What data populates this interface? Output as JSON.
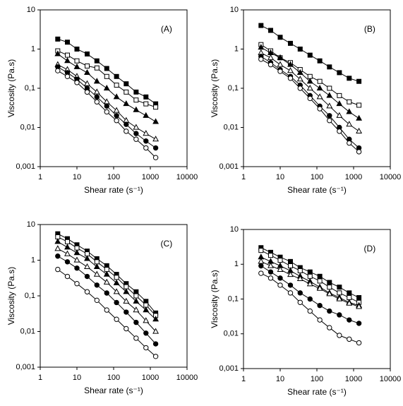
{
  "chart_data": [
    {
      "type": "line",
      "annotation": "(A)",
      "xlabel": "Shear rate (s⁻¹)",
      "ylabel": "Viscosity (Pa.s)",
      "xscale": "log",
      "yscale": "log",
      "grid": false,
      "xlim": [
        1,
        10000
      ],
      "xticks": [
        1,
        10,
        100,
        1000,
        10000
      ],
      "ylim": [
        0.001,
        10
      ],
      "yticks": [
        {
          "value": 0.001,
          "label": "0,001"
        },
        {
          "value": 0.01,
          "label": "0,01"
        },
        {
          "value": 0.1,
          "label": "0,1"
        },
        1,
        10
      ],
      "x": [
        3,
        5.5,
        10,
        19,
        35,
        65,
        120,
        220,
        410,
        760,
        1400
      ],
      "series": [
        {
          "marker": "square",
          "filled": true,
          "color": "#000000",
          "values": [
            1.8,
            1.5,
            1.0,
            0.75,
            0.5,
            0.32,
            0.2,
            0.13,
            0.08,
            0.06,
            0.04
          ]
        },
        {
          "marker": "square",
          "filled": false,
          "color": "#000000",
          "values": [
            0.9,
            0.7,
            0.5,
            0.37,
            0.33,
            0.2,
            0.12,
            0.08,
            0.05,
            0.04,
            0.033
          ]
        },
        {
          "marker": "triangle",
          "filled": true,
          "color": "#000000",
          "values": [
            0.75,
            0.5,
            0.35,
            0.25,
            0.15,
            0.1,
            0.06,
            0.04,
            0.028,
            0.02,
            0.014
          ]
        },
        {
          "marker": "triangle",
          "filled": false,
          "color": "#000000",
          "values": [
            0.4,
            0.3,
            0.2,
            0.13,
            0.08,
            0.045,
            0.027,
            0.015,
            0.01,
            0.007,
            0.005
          ]
        },
        {
          "marker": "circle",
          "filled": true,
          "color": "#000000",
          "values": [
            0.35,
            0.25,
            0.17,
            0.1,
            0.06,
            0.035,
            0.02,
            0.012,
            0.007,
            0.0045,
            0.003
          ]
        },
        {
          "marker": "circle",
          "filled": false,
          "color": "#000000",
          "values": [
            0.28,
            0.2,
            0.14,
            0.08,
            0.045,
            0.025,
            0.015,
            0.008,
            0.005,
            0.003,
            0.0017
          ]
        }
      ]
    },
    {
      "type": "line",
      "annotation": "(B)",
      "xlabel": "Shear rate (s⁻¹)",
      "ylabel": "Viscosity (Pa.s)",
      "xscale": "log",
      "yscale": "log",
      "grid": false,
      "xlim": [
        1,
        10000
      ],
      "xticks": [
        1,
        10,
        100,
        1000,
        10000
      ],
      "ylim": [
        0.001,
        10
      ],
      "yticks": [
        {
          "value": 0.001,
          "label": "0,001"
        },
        {
          "value": 0.01,
          "label": "0,01"
        },
        {
          "value": 0.1,
          "label": "0,1"
        },
        1,
        10
      ],
      "x": [
        3,
        5.5,
        10,
        19,
        35,
        65,
        120,
        220,
        410,
        760,
        1400
      ],
      "series": [
        {
          "marker": "square",
          "filled": true,
          "color": "#000000",
          "values": [
            4,
            3,
            2,
            1.4,
            1,
            0.7,
            0.5,
            0.35,
            0.25,
            0.18,
            0.15
          ]
        },
        {
          "marker": "square",
          "filled": false,
          "color": "#000000",
          "values": [
            1.3,
            0.9,
            0.6,
            0.45,
            0.3,
            0.2,
            0.15,
            0.1,
            0.065,
            0.045,
            0.037
          ]
        },
        {
          "marker": "triangle",
          "filled": true,
          "color": "#000000",
          "values": [
            1.1,
            0.8,
            0.6,
            0.4,
            0.25,
            0.15,
            0.1,
            0.065,
            0.04,
            0.025,
            0.017
          ]
        },
        {
          "marker": "triangle",
          "filled": false,
          "color": "#000000",
          "values": [
            0.8,
            0.6,
            0.4,
            0.28,
            0.17,
            0.1,
            0.06,
            0.035,
            0.02,
            0.012,
            0.008
          ]
        },
        {
          "marker": "circle",
          "filled": true,
          "color": "#000000",
          "values": [
            0.65,
            0.45,
            0.3,
            0.2,
            0.12,
            0.065,
            0.035,
            0.02,
            0.01,
            0.005,
            0.003
          ]
        },
        {
          "marker": "circle",
          "filled": false,
          "color": "#000000",
          "values": [
            0.55,
            0.4,
            0.27,
            0.18,
            0.1,
            0.055,
            0.03,
            0.015,
            0.008,
            0.004,
            0.0024
          ]
        }
      ]
    },
    {
      "type": "line",
      "annotation": "(C)",
      "xlabel": "Shear rate (s⁻¹)",
      "ylabel": "Viscosity (Pa.s)",
      "xscale": "log",
      "yscale": "log",
      "grid": false,
      "xlim": [
        1,
        10000
      ],
      "xticks": [
        1,
        10,
        100,
        1000,
        10000
      ],
      "ylim": [
        0.001,
        10
      ],
      "yticks": [
        {
          "value": 0.001,
          "label": "0,001"
        },
        {
          "value": 0.01,
          "label": "0,01"
        },
        {
          "value": 0.1,
          "label": "0,1"
        },
        1,
        10
      ],
      "x": [
        3,
        5.5,
        10,
        19,
        35,
        65,
        120,
        220,
        410,
        760,
        1400
      ],
      "series": [
        {
          "marker": "square",
          "filled": true,
          "color": "#000000",
          "values": [
            5.5,
            4,
            2.7,
            1.8,
            1.1,
            0.7,
            0.4,
            0.22,
            0.13,
            0.07,
            0.033
          ]
        },
        {
          "marker": "square",
          "filled": false,
          "color": "#000000",
          "values": [
            4.5,
            3.3,
            2.2,
            1.5,
            0.9,
            0.55,
            0.33,
            0.18,
            0.1,
            0.055,
            0.028
          ]
        },
        {
          "marker": "triangle",
          "filled": true,
          "color": "#000000",
          "values": [
            3.3,
            2.3,
            1.6,
            1.1,
            0.65,
            0.4,
            0.23,
            0.13,
            0.07,
            0.04,
            0.022
          ]
        },
        {
          "marker": "triangle",
          "filled": false,
          "color": "#000000",
          "values": [
            2.1,
            1.5,
            1.0,
            0.65,
            0.4,
            0.24,
            0.13,
            0.07,
            0.04,
            0.02,
            0.01
          ]
        },
        {
          "marker": "circle",
          "filled": true,
          "color": "#000000",
          "values": [
            1.3,
            0.9,
            0.6,
            0.35,
            0.2,
            0.12,
            0.065,
            0.035,
            0.018,
            0.009,
            0.0045
          ]
        },
        {
          "marker": "circle",
          "filled": false,
          "color": "#000000",
          "values": [
            0.55,
            0.35,
            0.22,
            0.13,
            0.075,
            0.04,
            0.022,
            0.012,
            0.0065,
            0.0035,
            0.002
          ]
        }
      ]
    },
    {
      "type": "line",
      "annotation": "(D)",
      "xlabel": "Shear rate (s⁻¹)",
      "ylabel": "Viscosity (Pa.s)",
      "xscale": "log",
      "yscale": "log",
      "grid": false,
      "xlim": [
        1,
        10000
      ],
      "xticks": [
        1,
        10,
        100,
        1000,
        10000
      ],
      "ylim": [
        0.001,
        10
      ],
      "yticks": [
        {
          "value": 0.001,
          "label": "0,001"
        },
        {
          "value": 0.01,
          "label": "0,01"
        },
        {
          "value": 0.1,
          "label": "0,1"
        },
        1,
        10
      ],
      "x": [
        3,
        5.5,
        10,
        19,
        35,
        65,
        120,
        220,
        410,
        760,
        1400
      ],
      "series": [
        {
          "marker": "square",
          "filled": true,
          "color": "#000000",
          "values": [
            3,
            2.2,
            1.6,
            1.2,
            0.8,
            0.6,
            0.45,
            0.3,
            0.22,
            0.15,
            0.11
          ]
        },
        {
          "marker": "square",
          "filled": false,
          "color": "#000000",
          "values": [
            2.5,
            1.8,
            1.3,
            0.9,
            0.65,
            0.45,
            0.33,
            0.22,
            0.15,
            0.11,
            0.08
          ]
        },
        {
          "marker": "triangle",
          "filled": true,
          "color": "#000000",
          "values": [
            1.6,
            1.2,
            0.9,
            0.65,
            0.45,
            0.32,
            0.22,
            0.15,
            0.11,
            0.08,
            0.065
          ]
        },
        {
          "marker": "triangle",
          "filled": false,
          "color": "#000000",
          "values": [
            1.2,
            0.9,
            0.7,
            0.5,
            0.38,
            0.27,
            0.2,
            0.14,
            0.1,
            0.075,
            0.06
          ]
        },
        {
          "marker": "circle",
          "filled": true,
          "color": "#000000",
          "values": [
            0.9,
            0.6,
            0.4,
            0.25,
            0.15,
            0.1,
            0.065,
            0.045,
            0.035,
            0.025,
            0.02
          ]
        },
        {
          "marker": "circle",
          "filled": false,
          "color": "#000000",
          "values": [
            0.55,
            0.4,
            0.25,
            0.15,
            0.08,
            0.045,
            0.025,
            0.015,
            0.009,
            0.007,
            0.0055
          ]
        }
      ]
    }
  ]
}
